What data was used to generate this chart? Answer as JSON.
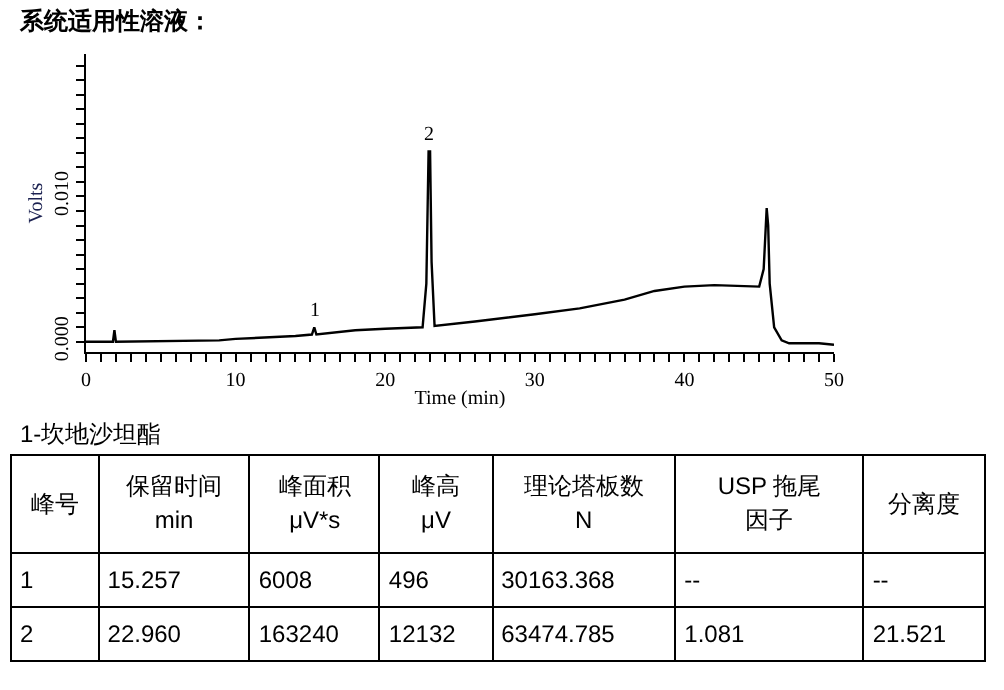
{
  "chart_data": [
    {
      "type": "line",
      "title": "系统适用性溶液：",
      "xlabel": "Time (min)",
      "ylabel": "Volts",
      "grid": false,
      "marker": "none",
      "line_style": "solid",
      "x": [
        0,
        1.8,
        1.9,
        2.0,
        8.9,
        10,
        14,
        15.1,
        15.26,
        15.4,
        18,
        20,
        22.5,
        22.75,
        22.9,
        23.0,
        23.1,
        23.3,
        26,
        30,
        33,
        36,
        38,
        40,
        42,
        45,
        45.3,
        45.5,
        45.6,
        45.7,
        46,
        46.5,
        47,
        49,
        50
      ],
      "series": [
        {
          "color": "#000000",
          "values": [
            0,
            0,
            0.0008,
            0,
            0.0001,
            0.0002,
            0.0004,
            0.0005,
            0.001,
            0.0005,
            0.0008,
            0.0009,
            0.001,
            0.004,
            0.0131,
            0.0131,
            0.0055,
            0.0011,
            0.0014,
            0.0019,
            0.0023,
            0.0029,
            0.0035,
            0.0038,
            0.0039,
            0.0038,
            0.005,
            0.0092,
            0.008,
            0.004,
            0.001,
            0.0001,
            -0.0001,
            -0.0001,
            -0.0002
          ]
        }
      ],
      "annotations": [
        {
          "text": "1",
          "x": 15.257,
          "y": 0.0011
        },
        {
          "text": "2",
          "x": 22.96,
          "y": 0.0132
        }
      ],
      "xlim": [
        0,
        50
      ],
      "ylim": [
        -0.0007,
        0.0198
      ],
      "xticks": [
        0,
        {
          "value": 1,
          "label": null
        },
        {
          "value": 2,
          "label": null
        },
        {
          "value": 3,
          "label": null
        },
        {
          "value": 4,
          "label": null
        },
        {
          "value": 5,
          "label": null
        },
        {
          "value": 6,
          "label": null
        },
        {
          "value": 7,
          "label": null
        },
        {
          "value": 8,
          "label": null
        },
        {
          "value": 9,
          "label": null
        },
        10,
        {
          "value": 11,
          "label": null
        },
        {
          "value": 12,
          "label": null
        },
        {
          "value": 13,
          "label": null
        },
        {
          "value": 14,
          "label": null
        },
        {
          "value": 15,
          "label": null
        },
        {
          "value": 16,
          "label": null
        },
        {
          "value": 17,
          "label": null
        },
        {
          "value": 18,
          "label": null
        },
        {
          "value": 19,
          "label": null
        },
        20,
        {
          "value": 21,
          "label": null
        },
        {
          "value": 22,
          "label": null
        },
        {
          "value": 23,
          "label": null
        },
        {
          "value": 24,
          "label": null
        },
        {
          "value": 25,
          "label": null
        },
        {
          "value": 26,
          "label": null
        },
        {
          "value": 27,
          "label": null
        },
        {
          "value": 28,
          "label": null
        },
        {
          "value": 29,
          "label": null
        },
        30,
        {
          "value": 31,
          "label": null
        },
        {
          "value": 32,
          "label": null
        },
        {
          "value": 33,
          "label": null
        },
        {
          "value": 34,
          "label": null
        },
        {
          "value": 35,
          "label": null
        },
        {
          "value": 36,
          "label": null
        },
        {
          "value": 37,
          "label": null
        },
        {
          "value": 38,
          "label": null
        },
        {
          "value": 39,
          "label": null
        },
        40,
        {
          "value": 41,
          "label": null
        },
        {
          "value": 42,
          "label": null
        },
        {
          "value": 43,
          "label": null
        },
        {
          "value": 44,
          "label": null
        },
        {
          "value": 45,
          "label": null
        },
        {
          "value": 46,
          "label": null
        },
        {
          "value": 47,
          "label": null
        },
        {
          "value": 48,
          "label": null
        },
        {
          "value": 49,
          "label": null
        },
        50
      ],
      "yticks": [
        {
          "value": 0,
          "label": "0.000"
        },
        {
          "value": 0.001,
          "label": null
        },
        {
          "value": 0.002,
          "label": null
        },
        {
          "value": 0.003,
          "label": null
        },
        {
          "value": 0.004,
          "label": null
        },
        {
          "value": 0.005,
          "label": null
        },
        {
          "value": 0.006,
          "label": null
        },
        {
          "value": 0.007,
          "label": null
        },
        {
          "value": 0.008,
          "label": null
        },
        {
          "value": 0.009,
          "label": null
        },
        {
          "value": 0.01,
          "label": "0.010"
        },
        {
          "value": 0.011,
          "label": null
        },
        {
          "value": 0.012,
          "label": null
        },
        {
          "value": 0.013,
          "label": null
        },
        {
          "value": 0.014,
          "label": null
        },
        {
          "value": 0.015,
          "label": null
        },
        {
          "value": 0.016,
          "label": null
        },
        {
          "value": 0.017,
          "label": null
        },
        {
          "value": 0.018,
          "label": null
        },
        {
          "value": 0.019,
          "label": null
        }
      ]
    },
    {
      "type": "other",
      "title": "1-坎地沙坦酯",
      "categories": [
        "峰号",
        "保留时间\nmin",
        "峰面积\nμV*s",
        "峰高\nμV",
        "理论塔板数\nN",
        "USP 拖尾因子",
        "分离度"
      ],
      "cell_labels": [
        [
          "1",
          "15.257",
          "6008",
          "496",
          "30163.368",
          "--",
          "--"
        ],
        [
          "2",
          "22.960",
          "163240",
          "12132",
          "63474.785",
          "1.081",
          "21.521"
        ]
      ]
    }
  ]
}
